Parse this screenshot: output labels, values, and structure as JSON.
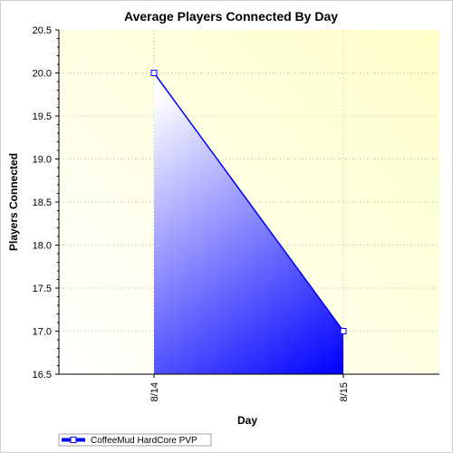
{
  "chart_data": {
    "type": "area",
    "title": "Average Players Connected By Day",
    "xlabel": "Day",
    "ylabel": "Players Connected",
    "categories": [
      "8/14",
      "8/15"
    ],
    "series": [
      {
        "name": "CoffeeMud HardCore PVP",
        "values": [
          20.0,
          17.0
        ]
      }
    ],
    "ylim": [
      16.5,
      20.5
    ],
    "yticks": [
      16.5,
      17.0,
      17.5,
      18.0,
      18.5,
      19.0,
      19.5,
      20.0,
      20.5
    ],
    "ytick_labels": [
      "16.5",
      "17.0",
      "17.5",
      "18.0",
      "18.5",
      "19.0",
      "19.5",
      "20.0",
      "20.5"
    ],
    "grid": true,
    "legend_position": "bottom-left",
    "colors": {
      "series": "#0000ff",
      "area_top": "#ffffff",
      "area_bottom": "#0000ff",
      "plot_bg_light": "#ffffc8",
      "plot_bg_white": "#ffffff",
      "grid": "#a0a0a0"
    }
  }
}
